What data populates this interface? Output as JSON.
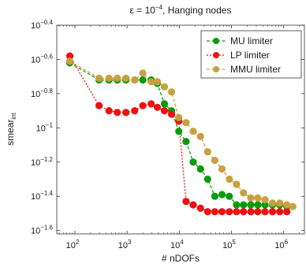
{
  "chart_data": {
    "type": "line",
    "title": "ε = 10^−4, Hanging nodes",
    "title_parts": {
      "prefix": "ε = 10",
      "exponent": "−4",
      "suffix": ", Hanging nodes"
    },
    "xlabel": "# nDOFs",
    "ylabel": "smear",
    "ylabel_subscript": "int",
    "x_scale": "log",
    "y_scale": "log",
    "xlim": [
      45,
      2500000
    ],
    "ylim_log10": [
      -1.62,
      -0.4
    ],
    "x_ticks": [
      {
        "value": 100,
        "base": "10",
        "exp": "2"
      },
      {
        "value": 1000,
        "base": "10",
        "exp": "3"
      },
      {
        "value": 10000,
        "base": "10",
        "exp": "4"
      },
      {
        "value": 100000,
        "base": "10",
        "exp": "5"
      },
      {
        "value": 1000000,
        "base": "10",
        "exp": "6"
      }
    ],
    "y_ticks": [
      {
        "log10": -0.4,
        "base": "10",
        "exp": "−0.4"
      },
      {
        "log10": -0.6,
        "base": "10",
        "exp": "−0.6"
      },
      {
        "log10": -0.8,
        "base": "10",
        "exp": "−0.8"
      },
      {
        "log10": -1.0,
        "base": "10",
        "exp": "−1"
      },
      {
        "log10": -1.2,
        "base": "10",
        "exp": "−1.2"
      },
      {
        "log10": -1.4,
        "base": "10",
        "exp": "−1.4"
      },
      {
        "log10": -1.6,
        "base": "10",
        "exp": "−1.6"
      }
    ],
    "legend_position": "top-right",
    "grid": false,
    "series": [
      {
        "name": "MU limiter",
        "color": "#0a9b0a",
        "x": [
          80,
          290,
          450,
          650,
          950,
          1400,
          2000,
          2900,
          3800,
          5200,
          7100,
          9800,
          13500,
          18500,
          25500,
          35000,
          48000,
          66000,
          91000,
          125000,
          170000,
          235000,
          320000,
          440000,
          610000,
          840000,
          1150000
        ],
        "log10y": [
          -0.62,
          -0.72,
          -0.72,
          -0.72,
          -0.72,
          -0.72,
          -0.72,
          -0.72,
          -0.74,
          -0.86,
          -0.9,
          -1.02,
          -1.08,
          -1.2,
          -1.24,
          -1.3,
          -1.4,
          -1.39,
          -1.4,
          -1.45,
          -1.45,
          -1.45,
          -1.45,
          -1.45,
          -1.45,
          -1.45,
          -1.46
        ]
      },
      {
        "name": "LP limiter",
        "color": "#ee1010",
        "x": [
          80,
          290,
          450,
          650,
          950,
          1400,
          2000,
          2900,
          3800,
          5200,
          7100,
          9800,
          13500,
          18500,
          25500,
          35000,
          48000,
          66000,
          91000,
          125000,
          170000,
          235000,
          320000,
          440000,
          610000,
          840000,
          1150000
        ],
        "log10y": [
          -0.58,
          -0.87,
          -0.9,
          -0.91,
          -0.91,
          -0.9,
          -0.87,
          -0.86,
          -0.88,
          -0.9,
          -0.92,
          -0.96,
          -1.43,
          -1.45,
          -1.47,
          -1.49,
          -1.49,
          -1.49,
          -1.49,
          -1.49,
          -1.49,
          -1.49,
          -1.49,
          -1.49,
          -1.49,
          -1.49,
          -1.49
        ]
      },
      {
        "name": "MMU limiter",
        "color": "#c8a040",
        "x": [
          80,
          290,
          450,
          650,
          950,
          1400,
          2000,
          2900,
          3800,
          5200,
          7100,
          9800,
          13500,
          18500,
          25500,
          35000,
          48000,
          66000,
          91000,
          125000,
          170000,
          235000,
          320000,
          440000,
          610000,
          840000,
          1150000,
          1500000
        ],
        "log10y": [
          -0.61,
          -0.71,
          -0.71,
          -0.71,
          -0.71,
          -0.72,
          -0.68,
          -0.73,
          -0.73,
          -0.76,
          -0.79,
          -0.94,
          -0.97,
          -1.02,
          -1.05,
          -1.14,
          -1.19,
          -1.24,
          -1.3,
          -1.33,
          -1.38,
          -1.41,
          -1.41,
          -1.42,
          -1.44,
          -1.44,
          -1.45,
          -1.46
        ]
      }
    ]
  }
}
